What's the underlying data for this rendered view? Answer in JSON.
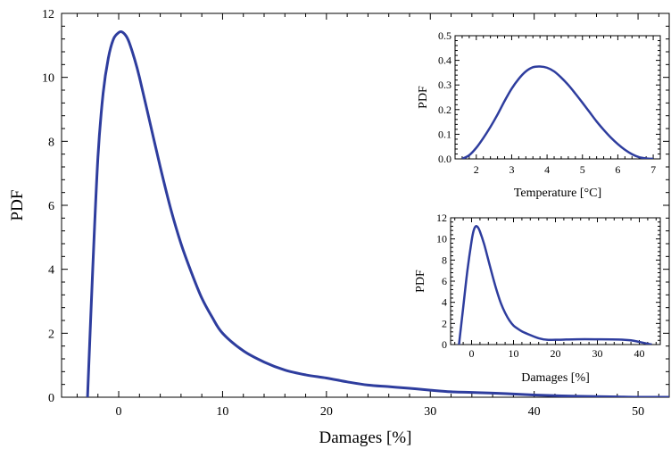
{
  "chart_data": [
    {
      "type": "line",
      "xlabel": "Damages [%]",
      "ylabel": "PDF",
      "xlim": [
        -5.5,
        53
      ],
      "ylim": [
        0,
        12
      ],
      "xticks": [
        0,
        10,
        20,
        30,
        40,
        50
      ],
      "yticks": [
        0,
        2,
        4,
        6,
        8,
        10,
        12
      ],
      "line_color": "#2e3d9e",
      "series": [
        {
          "x": [
            -3.0,
            -2.5,
            -2.0,
            -1.5,
            -1.0,
            -0.5,
            0.0,
            0.3,
            0.7,
            1.0,
            1.5,
            2.0,
            3.0,
            4.0,
            5.0,
            6.0,
            7.0,
            8.0,
            9.0,
            10.0,
            12.0,
            14.0,
            16.0,
            18.0,
            20.0,
            22.0,
            24.0,
            26.0,
            28.0,
            30.0,
            32.0,
            34.0,
            36.0,
            38.0,
            40.0,
            42.0,
            44.0,
            46.0,
            48.0,
            50.0,
            53.0
          ],
          "y": [
            0.0,
            4.0,
            7.5,
            9.5,
            10.6,
            11.2,
            11.4,
            11.42,
            11.3,
            11.1,
            10.6,
            10.0,
            8.6,
            7.2,
            5.9,
            4.8,
            3.9,
            3.1,
            2.5,
            2.0,
            1.45,
            1.1,
            0.85,
            0.7,
            0.6,
            0.48,
            0.38,
            0.33,
            0.28,
            0.22,
            0.17,
            0.15,
            0.13,
            0.1,
            0.07,
            0.05,
            0.03,
            0.02,
            0.01,
            0.0,
            0.0
          ]
        }
      ]
    },
    {
      "type": "line",
      "xlabel": "Temperature [°C]",
      "ylabel": "PDF",
      "xlim": [
        1.4,
        7.2
      ],
      "ylim": [
        0,
        0.5
      ],
      "xticks": [
        2,
        3,
        4,
        5,
        6,
        7
      ],
      "yticks": [
        "0.0",
        "0.1",
        "0.2",
        "0.3",
        "0.4",
        "0.5"
      ],
      "line_color": "#2e3d9e",
      "series": [
        {
          "x": [
            1.6,
            1.8,
            2.0,
            2.2,
            2.4,
            2.6,
            2.8,
            3.0,
            3.2,
            3.4,
            3.6,
            3.8,
            4.0,
            4.2,
            4.4,
            4.6,
            4.8,
            5.0,
            5.2,
            5.4,
            5.6,
            5.8,
            6.0,
            6.2,
            6.4,
            6.6,
            6.8,
            7.0
          ],
          "y": [
            0.0,
            0.015,
            0.045,
            0.085,
            0.13,
            0.18,
            0.235,
            0.285,
            0.325,
            0.355,
            0.372,
            0.375,
            0.37,
            0.355,
            0.33,
            0.3,
            0.265,
            0.228,
            0.19,
            0.152,
            0.118,
            0.087,
            0.06,
            0.037,
            0.019,
            0.007,
            0.002,
            0.0
          ]
        }
      ]
    },
    {
      "type": "line",
      "xlabel": "Damages [%]",
      "ylabel": "PDF",
      "xlim": [
        -5,
        45
      ],
      "ylim": [
        0,
        12
      ],
      "xticks": [
        0,
        10,
        20,
        30,
        40
      ],
      "yticks": [
        0,
        2,
        4,
        6,
        8,
        10,
        12
      ],
      "line_color": "#2e3d9e",
      "series": [
        {
          "x": [
            -3.0,
            -2.0,
            -1.0,
            0.0,
            0.5,
            1.0,
            1.5,
            2.0,
            3.0,
            4.0,
            5.0,
            6.0,
            7.0,
            8.0,
            9.0,
            10.0,
            11.0,
            12.0,
            14.0,
            16.0,
            18.0,
            20.0,
            25.0,
            30.0,
            35.0,
            38.0,
            40.0,
            42.0,
            43.0
          ],
          "y": [
            0.0,
            3.5,
            7.0,
            9.8,
            10.8,
            11.2,
            11.1,
            10.7,
            9.5,
            8.0,
            6.5,
            5.1,
            3.9,
            3.0,
            2.3,
            1.8,
            1.5,
            1.25,
            0.9,
            0.6,
            0.45,
            0.45,
            0.5,
            0.5,
            0.48,
            0.4,
            0.25,
            0.08,
            0.0
          ]
        }
      ]
    }
  ]
}
